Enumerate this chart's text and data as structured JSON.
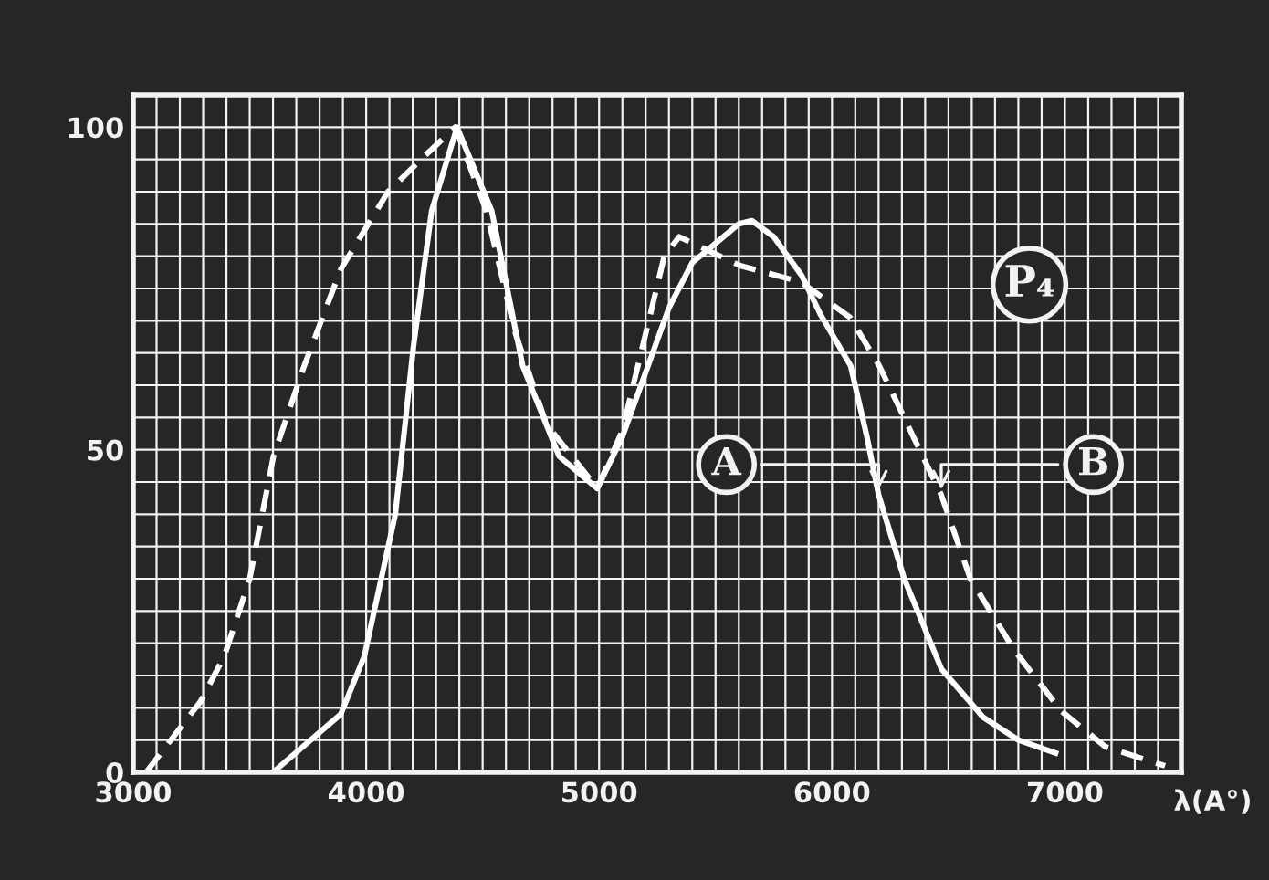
{
  "chart_data": {
    "type": "line",
    "xlabel": "λ(A°)",
    "xlim": [
      3000,
      7500
    ],
    "ylim": [
      0,
      105
    ],
    "xticks": [
      3000,
      {
        "value": 3100,
        "label": null
      },
      {
        "value": 3200,
        "label": null
      },
      {
        "value": 3300,
        "label": null
      },
      {
        "value": 3400,
        "label": null
      },
      {
        "value": 3500,
        "label": null
      },
      {
        "value": 3600,
        "label": null
      },
      {
        "value": 3700,
        "label": null
      },
      {
        "value": 3800,
        "label": null
      },
      {
        "value": 3900,
        "label": null
      },
      4000,
      {
        "value": 4100,
        "label": null
      },
      {
        "value": 4200,
        "label": null
      },
      {
        "value": 4300,
        "label": null
      },
      {
        "value": 4400,
        "label": null
      },
      {
        "value": 4500,
        "label": null
      },
      {
        "value": 4600,
        "label": null
      },
      {
        "value": 4700,
        "label": null
      },
      {
        "value": 4800,
        "label": null
      },
      {
        "value": 4900,
        "label": null
      },
      5000,
      {
        "value": 5100,
        "label": null
      },
      {
        "value": 5200,
        "label": null
      },
      {
        "value": 5300,
        "label": null
      },
      {
        "value": 5400,
        "label": null
      },
      {
        "value": 5500,
        "label": null
      },
      {
        "value": 5600,
        "label": null
      },
      {
        "value": 5700,
        "label": null
      },
      {
        "value": 5800,
        "label": null
      },
      {
        "value": 5900,
        "label": null
      },
      6000,
      {
        "value": 6100,
        "label": null
      },
      {
        "value": 6200,
        "label": null
      },
      {
        "value": 6300,
        "label": null
      },
      {
        "value": 6400,
        "label": null
      },
      {
        "value": 6500,
        "label": null
      },
      {
        "value": 6600,
        "label": null
      },
      {
        "value": 6700,
        "label": null
      },
      {
        "value": 6800,
        "label": null
      },
      {
        "value": 6900,
        "label": null
      },
      7000,
      {
        "value": 7100,
        "label": null
      },
      {
        "value": 7200,
        "label": null
      },
      {
        "value": 7300,
        "label": null
      },
      {
        "value": 7400,
        "label": null
      }
    ],
    "yticks": [
      0,
      {
        "value": 5,
        "label": null
      },
      {
        "value": 10,
        "label": null
      },
      {
        "value": 15,
        "label": null
      },
      {
        "value": 20,
        "label": null
      },
      {
        "value": 25,
        "label": null
      },
      {
        "value": 30,
        "label": null
      },
      {
        "value": 35,
        "label": null
      },
      {
        "value": 40,
        "label": null
      },
      {
        "value": 45,
        "label": null
      },
      50,
      {
        "value": 55,
        "label": null
      },
      {
        "value": 60,
        "label": null
      },
      {
        "value": 65,
        "label": null
      },
      {
        "value": 70,
        "label": null
      },
      {
        "value": 75,
        "label": null
      },
      {
        "value": 80,
        "label": null
      },
      {
        "value": 85,
        "label": null
      },
      {
        "value": 90,
        "label": null
      },
      {
        "value": 95,
        "label": null
      },
      100
    ],
    "grid": true,
    "marker": "none",
    "series": [
      {
        "color": "#ffffff",
        "line_style": "solid",
        "x": [
          3600,
          3891,
          3992,
          4125,
          4203,
          4281,
          4390,
          4539,
          4672,
          4828,
          4992,
          5100,
          5200,
          5300,
          5400,
          5500,
          5600,
          5656,
          5750,
          5870,
          5950,
          6080,
          6150,
          6200,
          6310,
          6470,
          6650,
          6800,
          6960
        ],
        "values": [
          0,
          9,
          18,
          40,
          66,
          87,
          100,
          87,
          63,
          49,
          44,
          52,
          62,
          72,
          79,
          82,
          85,
          85.5,
          83,
          77,
          71,
          63,
          52,
          43,
          30,
          16,
          8.5,
          5,
          3
        ]
      },
      {
        "color": "#ffffff",
        "line_style": "dashed",
        "x": [
          3055,
          3289,
          3391,
          3500,
          3602,
          3734,
          3891,
          4094,
          4250,
          4383,
          4516,
          4641,
          4773,
          4992,
          5100,
          5200,
          5280,
          5344,
          5609,
          5867,
          6078,
          6203,
          6336,
          6469,
          6594,
          6781,
          6984,
          7172,
          7430
        ],
        "values": [
          0,
          11,
          18,
          30,
          49,
          63,
          78,
          90,
          95.5,
          100,
          87,
          68,
          54,
          44,
          53,
          68,
          80,
          83,
          78.5,
          76,
          70.5,
          63,
          53,
          43,
          30,
          19,
          9.5,
          4,
          1
        ]
      }
    ],
    "annotations": [
      "P₄",
      {
        "text": "A",
        "x": 6200,
        "y": 43
      },
      {
        "text": "B",
        "x": 6469,
        "y": 43
      }
    ]
  }
}
